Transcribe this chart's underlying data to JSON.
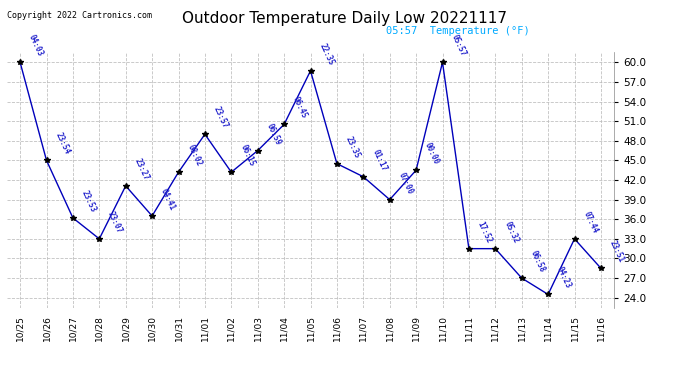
{
  "title": "Outdoor Temperature Daily Low 20221117",
  "copyright": "Copyright 2022 Cartronics.com",
  "legend_label": "05:57  Temperature (°F)",
  "ylim": [
    22.5,
    61.5
  ],
  "yticks": [
    24.0,
    27.0,
    30.0,
    33.0,
    36.0,
    39.0,
    42.0,
    45.0,
    48.0,
    51.0,
    54.0,
    57.0,
    60.0
  ],
  "dates": [
    "10/25",
    "10/26",
    "10/27",
    "10/28",
    "10/29",
    "10/30",
    "10/31",
    "11/01",
    "11/02",
    "11/03",
    "11/04",
    "11/05",
    "11/06",
    "11/07",
    "11/08",
    "11/09",
    "11/10",
    "11/11",
    "11/12",
    "11/13",
    "11/14",
    "11/15",
    "11/16"
  ],
  "values": [
    60.0,
    45.0,
    36.2,
    33.0,
    41.1,
    36.5,
    43.2,
    49.0,
    43.2,
    46.5,
    50.5,
    58.7,
    44.5,
    42.5,
    39.0,
    43.5,
    60.0,
    31.5,
    31.5,
    27.0,
    24.5,
    33.0,
    28.5
  ],
  "time_labels": [
    "04:03",
    "23:54",
    "23:53",
    "23:07",
    "23:27",
    "04:41",
    "08:02",
    "23:57",
    "06:15",
    "06:59",
    "06:45",
    "22:35",
    "23:35",
    "01:17",
    "07:00",
    "00:00",
    "05:57",
    "17:52",
    "05:32",
    "06:58",
    "04:23",
    "07:44",
    "23:51"
  ],
  "line_color": "#0000bb",
  "marker_color": "#000000",
  "label_color": "#2222cc",
  "bg_color": "#ffffff",
  "grid_color": "#bbbbbb",
  "title_color": "#000000",
  "copyright_color": "#000000",
  "legend_color": "#00aaff"
}
